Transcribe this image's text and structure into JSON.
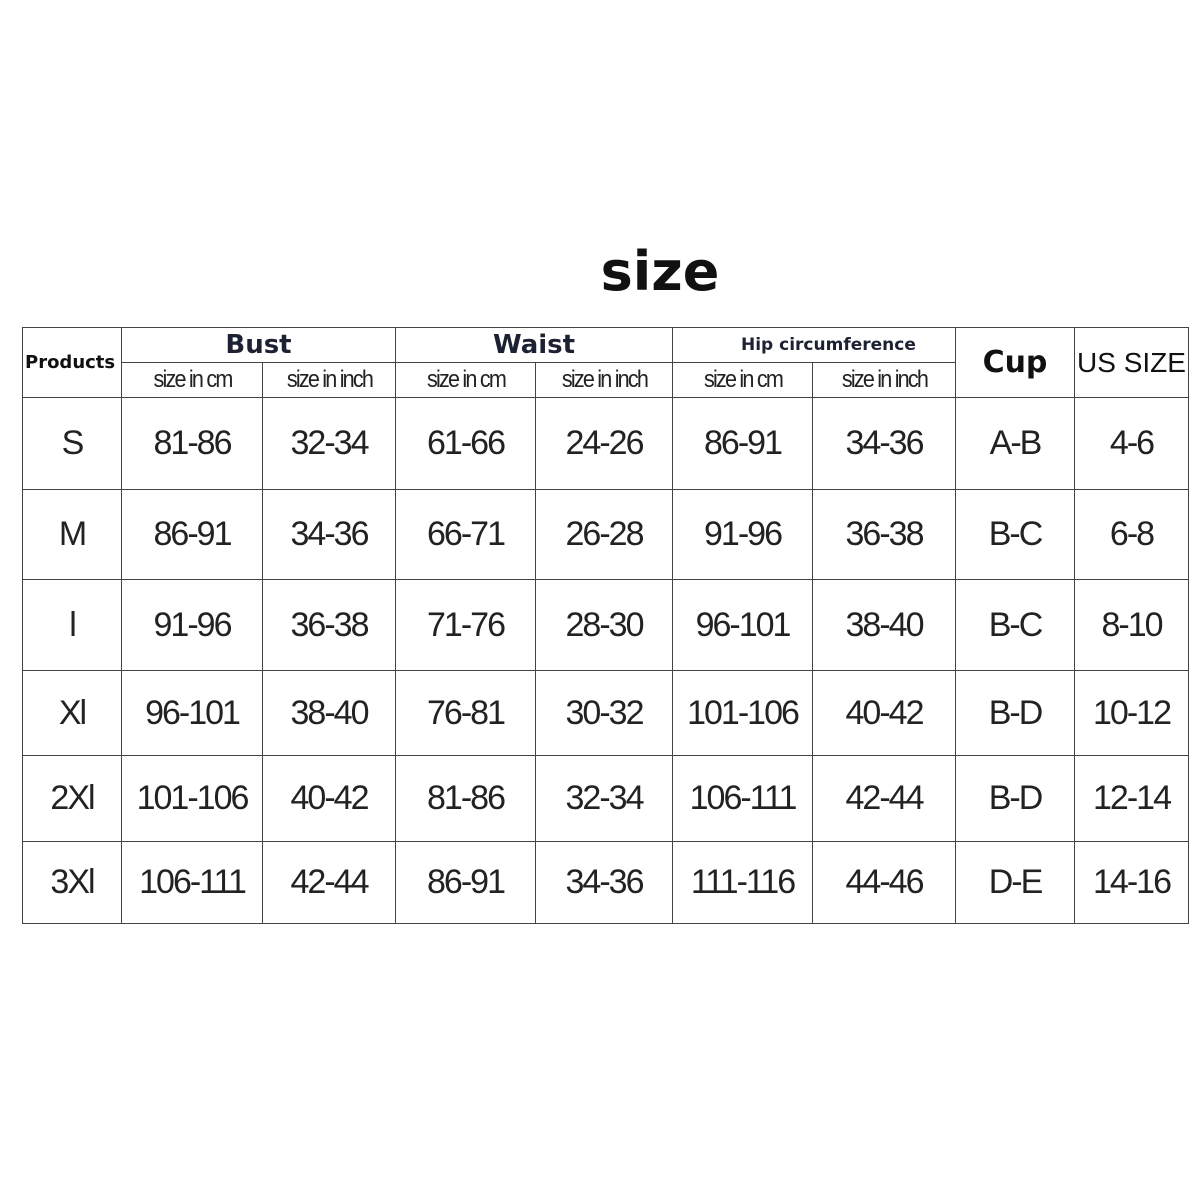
{
  "title": "size",
  "headers": {
    "products": "Products",
    "bust": "Bust",
    "waist": "Waist",
    "hip": "Hip circumference",
    "cup": "Cup",
    "us_size": "US SIZE",
    "size_cm": "size in cm",
    "size_inch": "size in inch"
  },
  "rows": [
    {
      "size": "S",
      "bust_cm": "81-86",
      "bust_in": "32-34",
      "waist_cm": "61-66",
      "waist_in": "24-26",
      "hip_cm": "86-91",
      "hip_in": "34-36",
      "cup": "A-B",
      "us": "4-6"
    },
    {
      "size": "M",
      "bust_cm": "86-91",
      "bust_in": "34-36",
      "waist_cm": "66-71",
      "waist_in": "26-28",
      "hip_cm": "91-96",
      "hip_in": "36-38",
      "cup": "B-C",
      "us": "6-8"
    },
    {
      "size": "l",
      "bust_cm": "91-96",
      "bust_in": "36-38",
      "waist_cm": "71-76",
      "waist_in": "28-30",
      "hip_cm": "96-101",
      "hip_in": "38-40",
      "cup": "B-C",
      "us": "8-10"
    },
    {
      "size": "Xl",
      "bust_cm": "96-101",
      "bust_in": "38-40",
      "waist_cm": "76-81",
      "waist_in": "30-32",
      "hip_cm": "101-106",
      "hip_in": "40-42",
      "cup": "B-D",
      "us": "10-12"
    },
    {
      "size": "2Xl",
      "bust_cm": "101-106",
      "bust_in": "40-42",
      "waist_cm": "81-86",
      "waist_in": "32-34",
      "hip_cm": "106-111",
      "hip_in": "42-44",
      "cup": "B-D",
      "us": "12-14"
    },
    {
      "size": "3Xl",
      "bust_cm": "106-111",
      "bust_in": "42-44",
      "waist_cm": "86-91",
      "waist_in": "34-36",
      "hip_cm": "111-116",
      "hip_in": "44-46",
      "cup": "D-E",
      "us": "14-16"
    }
  ]
}
